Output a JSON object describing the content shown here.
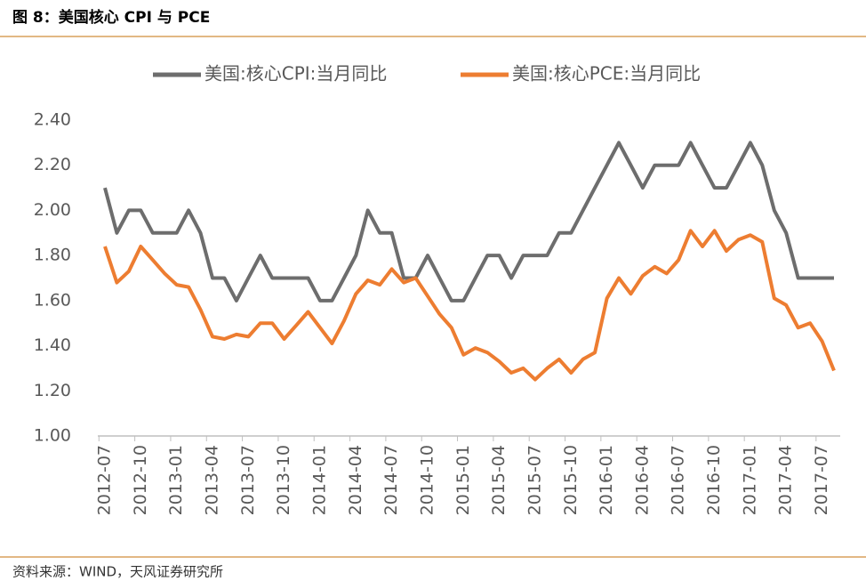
{
  "header": {
    "title": "图 8：美国核心 CPI 与 PCE"
  },
  "footer": {
    "source": "资料来源：WIND，天风证券研究所"
  },
  "chart_data": {
    "type": "line",
    "categories": [
      "2012-07",
      null,
      null,
      "2012-10",
      null,
      null,
      "2013-01",
      null,
      null,
      "2013-04",
      null,
      null,
      "2013-07",
      null,
      null,
      "2013-10",
      null,
      null,
      "2014-01",
      null,
      null,
      "2014-04",
      null,
      null,
      "2014-07",
      null,
      null,
      "2014-10",
      null,
      null,
      "2015-01",
      null,
      null,
      "2015-04",
      null,
      null,
      "2015-07",
      null,
      null,
      "2015-10",
      null,
      null,
      "2016-01",
      null,
      null,
      "2016-04",
      null,
      null,
      "2016-07",
      null,
      null,
      "2016-10",
      null,
      null,
      "2017-01",
      null,
      null,
      "2017-04",
      null,
      null,
      "2017-07",
      null
    ],
    "series": [
      {
        "name": "美国:核心CPI:当月同比",
        "color": "#6d6d6d",
        "values": [
          2.1,
          1.9,
          2.0,
          2.0,
          1.9,
          1.9,
          1.9,
          2.0,
          1.9,
          1.7,
          1.7,
          1.6,
          1.7,
          1.8,
          1.7,
          1.7,
          1.7,
          1.7,
          1.6,
          1.6,
          1.7,
          1.8,
          2.0,
          1.9,
          1.9,
          1.7,
          1.7,
          1.8,
          1.7,
          1.6,
          1.6,
          1.7,
          1.8,
          1.8,
          1.7,
          1.8,
          1.8,
          1.8,
          1.9,
          1.9,
          2.0,
          2.1,
          2.2,
          2.3,
          2.2,
          2.1,
          2.2,
          2.2,
          2.2,
          2.3,
          2.2,
          2.1,
          2.1,
          2.2,
          2.3,
          2.2,
          2.0,
          1.9,
          1.7,
          1.7,
          1.7,
          1.7
        ]
      },
      {
        "name": "美国:核心PCE:当月同比",
        "color": "#ed7d31",
        "values": [
          1.84,
          1.68,
          1.73,
          1.84,
          1.78,
          1.72,
          1.67,
          1.66,
          1.56,
          1.44,
          1.43,
          1.45,
          1.44,
          1.5,
          1.5,
          1.43,
          1.49,
          1.55,
          1.48,
          1.41,
          1.51,
          1.63,
          1.69,
          1.67,
          1.74,
          1.68,
          1.7,
          1.62,
          1.54,
          1.48,
          1.36,
          1.39,
          1.37,
          1.33,
          1.28,
          1.3,
          1.25,
          1.3,
          1.34,
          1.28,
          1.34,
          1.37,
          1.61,
          1.7,
          1.63,
          1.71,
          1.75,
          1.72,
          1.78,
          1.91,
          1.84,
          1.91,
          1.82,
          1.87,
          1.89,
          1.86,
          1.61,
          1.58,
          1.48,
          1.5,
          1.42,
          1.29
        ]
      }
    ],
    "ylim": [
      1.0,
      2.4
    ],
    "yticks": [
      {
        "value": 1.0,
        "label": "1.00"
      },
      {
        "value": 1.2,
        "label": "1.20"
      },
      {
        "value": 1.4,
        "label": "1.40"
      },
      {
        "value": 1.6,
        "label": "1.60"
      },
      {
        "value": 1.8,
        "label": "1.80"
      },
      {
        "value": 2.0,
        "label": "2.00"
      },
      {
        "value": 2.2,
        "label": "2.20"
      },
      {
        "value": 2.4,
        "label": "2.40"
      }
    ],
    "grid": false,
    "legend": "top"
  }
}
